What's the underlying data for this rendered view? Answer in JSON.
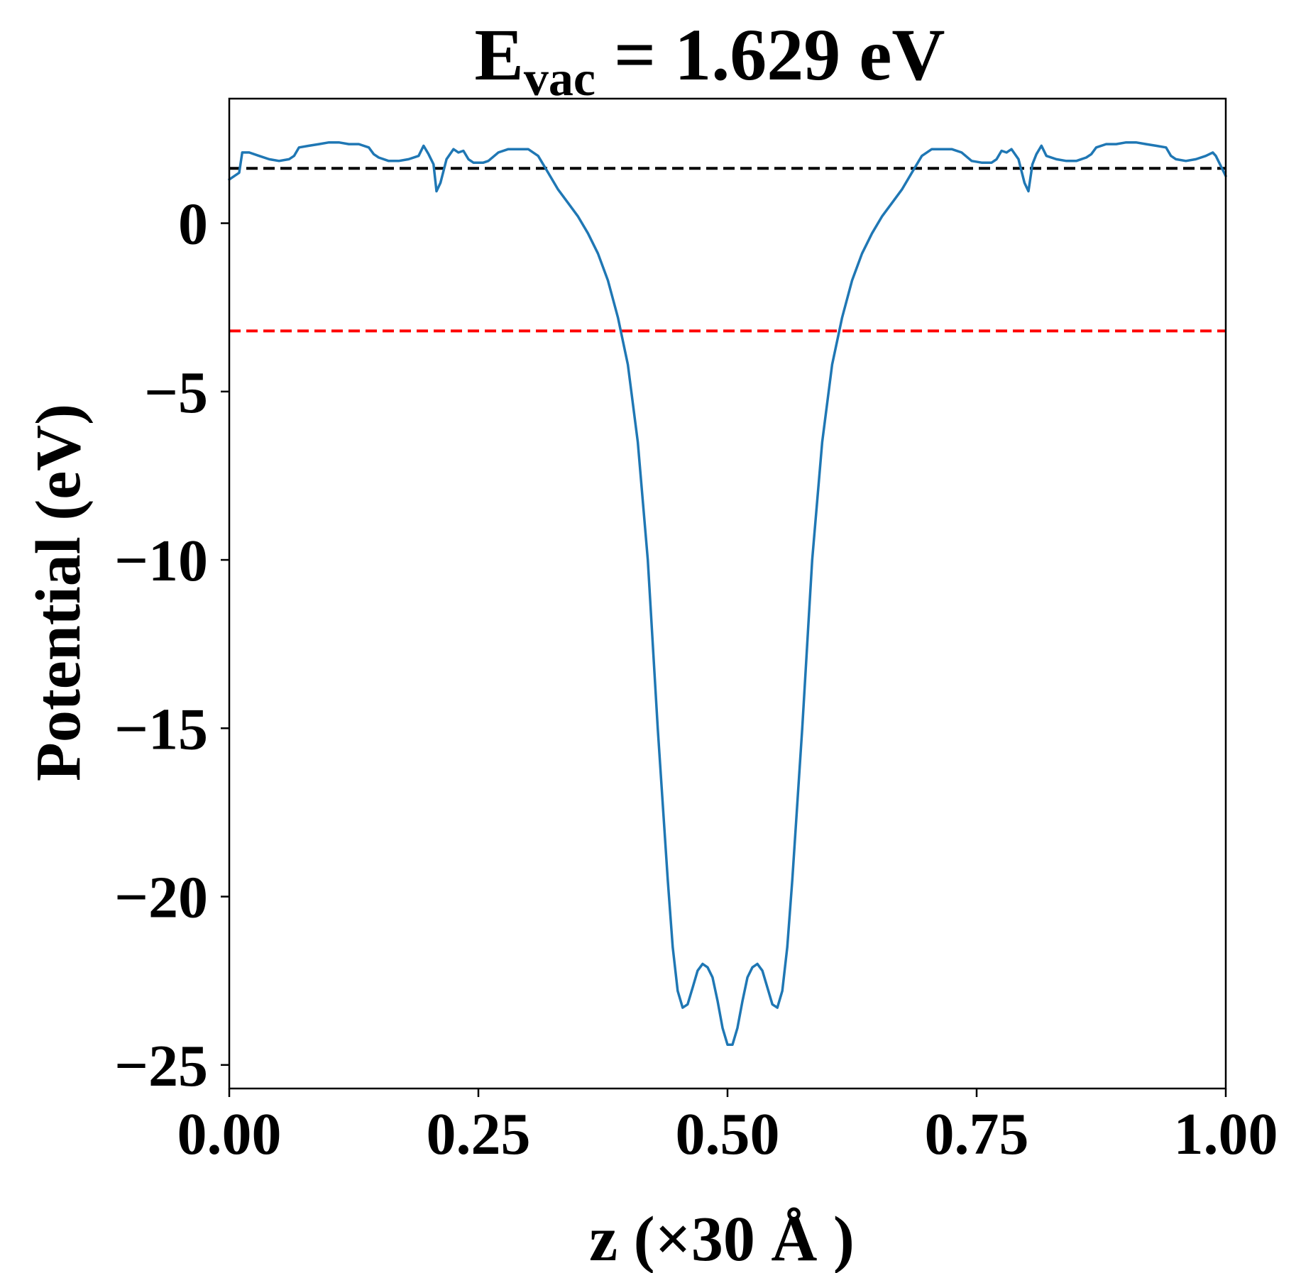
{
  "chart_data": {
    "type": "line",
    "title": {
      "main": "E",
      "subscript": "vac",
      "rest": " = 1.629 eV"
    },
    "xlabel": "z (×30 Å )",
    "ylabel": "Potential (eV)",
    "xlim": [
      0.0,
      1.0
    ],
    "ylim": [
      -25.7,
      3.7
    ],
    "xticks": [
      {
        "value": 0.0,
        "label": "0.00"
      },
      {
        "value": 0.25,
        "label": "0.25"
      },
      {
        "value": 0.5,
        "label": "0.50"
      },
      {
        "value": 0.75,
        "label": "0.75"
      },
      {
        "value": 1.0,
        "label": "1.00"
      }
    ],
    "yticks": [
      {
        "value": 0,
        "label": "0"
      },
      {
        "value": -5,
        "label": "−5"
      },
      {
        "value": -10,
        "label": "−10"
      },
      {
        "value": -15,
        "label": "−15"
      },
      {
        "value": -20,
        "label": "−20"
      },
      {
        "value": -25,
        "label": "−25"
      }
    ],
    "grid": false,
    "hlines": [
      {
        "y": 1.629,
        "color": "#000000",
        "style": "dashed"
      },
      {
        "y": -3.2,
        "color": "#ff0000",
        "style": "dashed"
      }
    ],
    "series": [
      {
        "color": "#1f77b4",
        "points": [
          [
            0.0,
            1.3
          ],
          [
            0.01,
            1.5
          ],
          [
            0.013,
            2.1
          ],
          [
            0.02,
            2.1
          ],
          [
            0.03,
            2.0
          ],
          [
            0.04,
            1.9
          ],
          [
            0.05,
            1.85
          ],
          [
            0.06,
            1.9
          ],
          [
            0.065,
            2.0
          ],
          [
            0.07,
            2.25
          ],
          [
            0.08,
            2.3
          ],
          [
            0.09,
            2.35
          ],
          [
            0.1,
            2.4
          ],
          [
            0.11,
            2.4
          ],
          [
            0.12,
            2.35
          ],
          [
            0.13,
            2.35
          ],
          [
            0.14,
            2.25
          ],
          [
            0.145,
            2.05
          ],
          [
            0.15,
            1.95
          ],
          [
            0.16,
            1.85
          ],
          [
            0.17,
            1.85
          ],
          [
            0.18,
            1.9
          ],
          [
            0.19,
            2.0
          ],
          [
            0.195,
            2.3
          ],
          [
            0.2,
            2.05
          ],
          [
            0.205,
            1.75
          ],
          [
            0.208,
            0.95
          ],
          [
            0.212,
            1.2
          ],
          [
            0.218,
            1.9
          ],
          [
            0.225,
            2.2
          ],
          [
            0.23,
            2.1
          ],
          [
            0.235,
            2.15
          ],
          [
            0.24,
            1.9
          ],
          [
            0.245,
            1.8
          ],
          [
            0.255,
            1.8
          ],
          [
            0.26,
            1.85
          ],
          [
            0.27,
            2.1
          ],
          [
            0.28,
            2.2
          ],
          [
            0.29,
            2.2
          ],
          [
            0.3,
            2.2
          ],
          [
            0.31,
            2.0
          ],
          [
            0.32,
            1.5
          ],
          [
            0.33,
            1.0
          ],
          [
            0.34,
            0.6
          ],
          [
            0.35,
            0.2
          ],
          [
            0.36,
            -0.3
          ],
          [
            0.37,
            -0.9
          ],
          [
            0.38,
            -1.7
          ],
          [
            0.39,
            -2.8
          ],
          [
            0.4,
            -4.2
          ],
          [
            0.41,
            -6.5
          ],
          [
            0.42,
            -10.0
          ],
          [
            0.43,
            -15.0
          ],
          [
            0.44,
            -19.5
          ],
          [
            0.445,
            -21.5
          ],
          [
            0.45,
            -22.8
          ],
          [
            0.455,
            -23.3
          ],
          [
            0.46,
            -23.2
          ],
          [
            0.465,
            -22.7
          ],
          [
            0.47,
            -22.2
          ],
          [
            0.475,
            -22.0
          ],
          [
            0.48,
            -22.1
          ],
          [
            0.485,
            -22.4
          ],
          [
            0.49,
            -23.1
          ],
          [
            0.495,
            -23.9
          ],
          [
            0.5,
            -24.4
          ],
          [
            0.505,
            -24.4
          ],
          [
            0.51,
            -23.9
          ],
          [
            0.515,
            -23.1
          ],
          [
            0.52,
            -22.4
          ],
          [
            0.525,
            -22.1
          ],
          [
            0.53,
            -22.0
          ],
          [
            0.535,
            -22.2
          ],
          [
            0.54,
            -22.7
          ],
          [
            0.545,
            -23.2
          ],
          [
            0.55,
            -23.3
          ],
          [
            0.555,
            -22.8
          ],
          [
            0.56,
            -21.5
          ],
          [
            0.565,
            -19.5
          ],
          [
            0.575,
            -15.0
          ],
          [
            0.585,
            -10.0
          ],
          [
            0.595,
            -6.5
          ],
          [
            0.605,
            -4.2
          ],
          [
            0.615,
            -2.8
          ],
          [
            0.625,
            -1.7
          ],
          [
            0.635,
            -0.9
          ],
          [
            0.645,
            -0.3
          ],
          [
            0.655,
            0.2
          ],
          [
            0.665,
            0.6
          ],
          [
            0.675,
            1.0
          ],
          [
            0.685,
            1.5
          ],
          [
            0.695,
            2.0
          ],
          [
            0.705,
            2.2
          ],
          [
            0.715,
            2.2
          ],
          [
            0.725,
            2.2
          ],
          [
            0.735,
            2.1
          ],
          [
            0.745,
            1.85
          ],
          [
            0.755,
            1.8
          ],
          [
            0.765,
            1.8
          ],
          [
            0.77,
            1.9
          ],
          [
            0.775,
            2.15
          ],
          [
            0.78,
            2.1
          ],
          [
            0.785,
            2.2
          ],
          [
            0.792,
            1.9
          ],
          [
            0.798,
            1.2
          ],
          [
            0.802,
            0.95
          ],
          [
            0.806,
            1.75
          ],
          [
            0.81,
            2.05
          ],
          [
            0.815,
            2.3
          ],
          [
            0.82,
            2.0
          ],
          [
            0.83,
            1.9
          ],
          [
            0.84,
            1.85
          ],
          [
            0.85,
            1.85
          ],
          [
            0.86,
            1.95
          ],
          [
            0.865,
            2.05
          ],
          [
            0.87,
            2.25
          ],
          [
            0.88,
            2.35
          ],
          [
            0.89,
            2.35
          ],
          [
            0.9,
            2.4
          ],
          [
            0.91,
            2.4
          ],
          [
            0.92,
            2.35
          ],
          [
            0.93,
            2.3
          ],
          [
            0.94,
            2.25
          ],
          [
            0.945,
            2.0
          ],
          [
            0.95,
            1.9
          ],
          [
            0.96,
            1.85
          ],
          [
            0.97,
            1.9
          ],
          [
            0.98,
            2.0
          ],
          [
            0.987,
            2.1
          ],
          [
            0.99,
            2.0
          ],
          [
            0.995,
            1.7
          ],
          [
            1.0,
            1.4
          ]
        ]
      }
    ]
  }
}
